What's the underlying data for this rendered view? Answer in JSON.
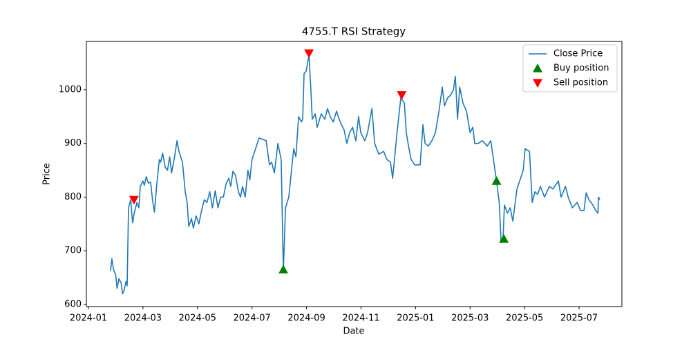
{
  "chart_data": {
    "type": "line",
    "title": "4755.T RSI Strategy",
    "xlabel": "Date",
    "ylabel": "Price",
    "xlim": [
      -0.076,
      19.57
    ],
    "ylim": [
      596,
      1090
    ],
    "xticks": [
      {
        "value": 0,
        "label": "2024-01"
      },
      {
        "value": 2,
        "label": "2024-03"
      },
      {
        "value": 4,
        "label": "2024-05"
      },
      {
        "value": 6,
        "label": "2024-07"
      },
      {
        "value": 8,
        "label": "2024-09"
      },
      {
        "value": 10,
        "label": "2024-11"
      },
      {
        "value": 12,
        "label": "2025-01"
      },
      {
        "value": 14,
        "label": "2025-03"
      },
      {
        "value": 16,
        "label": "2025-05"
      },
      {
        "value": 18,
        "label": "2025-07"
      }
    ],
    "yticks": [
      600,
      700,
      800,
      900,
      1000
    ],
    "grid": false,
    "legend": "upper right",
    "series": [
      {
        "name": "Close Price",
        "type": "line",
        "color": "#1f77b4",
        "x": [
          0.81,
          0.86,
          0.92,
          1.0,
          1.05,
          1.12,
          1.2,
          1.25,
          1.3,
          1.38,
          1.42,
          1.47,
          1.55,
          1.62,
          1.68,
          1.78,
          1.85,
          1.9,
          2.0,
          2.05,
          2.12,
          2.2,
          2.28,
          2.35,
          2.42,
          2.5,
          2.6,
          2.65,
          2.72,
          2.82,
          2.9,
          2.98,
          3.05,
          3.15,
          3.25,
          3.32,
          3.45,
          3.55,
          3.62,
          3.68,
          3.78,
          3.85,
          3.95,
          4.05,
          4.15,
          4.25,
          4.35,
          4.45,
          4.55,
          4.65,
          4.75,
          4.85,
          4.95,
          5.05,
          5.15,
          5.22,
          5.3,
          5.4,
          5.5,
          5.58,
          5.65,
          5.75,
          5.85,
          5.92,
          6.0,
          6.26,
          6.52,
          6.64,
          6.72,
          6.82,
          6.95,
          7.07,
          7.15,
          7.23,
          7.35,
          7.53,
          7.61,
          7.71,
          7.81,
          7.86,
          7.91,
          7.99,
          8.09,
          8.16,
          8.21,
          8.32,
          8.39,
          8.54,
          8.67,
          8.77,
          8.87,
          8.98,
          9.1,
          9.2,
          9.28,
          9.38,
          9.48,
          9.58,
          9.69,
          9.81,
          9.91,
          9.99,
          10.14,
          10.24,
          10.4,
          10.5,
          10.65,
          10.83,
          10.95,
          11.08,
          11.16,
          11.33,
          11.46,
          11.59,
          11.66,
          11.76,
          11.84,
          11.97,
          12.17,
          12.27,
          12.35,
          12.47,
          12.6,
          12.73,
          12.86,
          12.98,
          13.06,
          13.18,
          13.29,
          13.39,
          13.46,
          13.54,
          13.62,
          13.74,
          13.87,
          14.0,
          14.1,
          14.17,
          14.3,
          14.45,
          14.63,
          14.76,
          14.97,
          15.07,
          15.14,
          15.21,
          15.26,
          15.37,
          15.47,
          15.57,
          15.72,
          15.82,
          15.95,
          16.02,
          16.18,
          16.28,
          16.38,
          16.48,
          16.58,
          16.73,
          16.91,
          17.04,
          17.24,
          17.34,
          17.5,
          17.6,
          17.75,
          17.93,
          18.05,
          18.18,
          18.26,
          18.36,
          18.51,
          18.61,
          18.69,
          18.71,
          18.76
        ],
        "values": [
          662,
          685,
          665,
          655,
          630,
          648,
          640,
          620,
          625,
          643,
          635,
          780,
          795,
          752,
          770,
          790,
          780,
          820,
          830,
          822,
          838,
          826,
          828,
          795,
          772,
          820,
          870,
          865,
          882,
          855,
          850,
          875,
          845,
          872,
          905,
          885,
          865,
          810,
          790,
          745,
          760,
          742,
          765,
          750,
          775,
          795,
          790,
          810,
          780,
          812,
          780,
          800,
          800,
          825,
          835,
          820,
          848,
          840,
          810,
          800,
          820,
          800,
          850,
          832,
          870,
          910,
          905,
          860,
          865,
          845,
          900,
          870,
          662,
          780,
          800,
          890,
          875,
          950,
          940,
          945,
          1030,
          1035,
          1065,
          1000,
          945,
          955,
          930,
          955,
          945,
          965,
          950,
          940,
          960,
          945,
          935,
          925,
          900,
          920,
          930,
          905,
          950,
          920,
          905,
          920,
          965,
          900,
          880,
          885,
          870,
          865,
          835,
          925,
          985,
          975,
          920,
          890,
          870,
          860,
          860,
          935,
          900,
          895,
          905,
          920,
          960,
          1005,
          970,
          985,
          990,
          1000,
          1025,
          945,
          1005,
          975,
          960,
          920,
          930,
          900,
          900,
          905,
          895,
          905,
          830,
          790,
          715,
          722,
          785,
          770,
          780,
          755,
          815,
          830,
          850,
          890,
          885,
          790,
          810,
          805,
          820,
          800,
          820,
          815,
          830,
          800,
          820,
          800,
          780,
          790,
          775,
          775,
          808,
          795,
          785,
          775,
          770,
          800,
          795
        ]
      },
      {
        "name": "Buy position",
        "type": "scatter",
        "marker": "triangle-up",
        "color": "#008000",
        "x": [
          7.15,
          14.97,
          15.24
        ],
        "values": [
          665,
          830,
          722
        ]
      },
      {
        "name": "Sell position",
        "type": "scatter",
        "marker": "triangle-down",
        "color": "#ff0000",
        "x": [
          1.67,
          8.09,
          11.49
        ],
        "values": [
          795,
          1068,
          990
        ]
      }
    ]
  }
}
